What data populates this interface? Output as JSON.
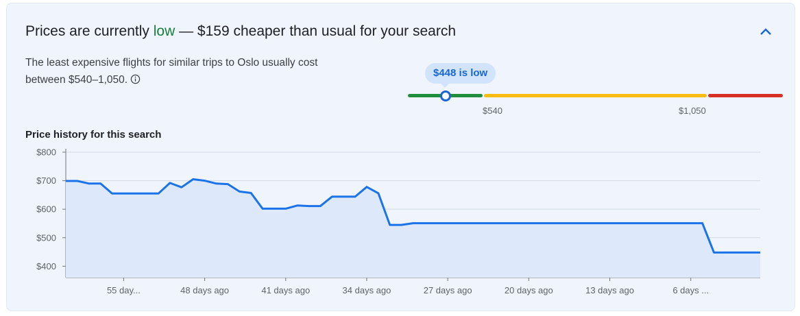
{
  "insight": {
    "headline_prefix": "Prices are currently ",
    "headline_status": "low",
    "headline_suffix": " — $159 cheaper than usual for your search",
    "description": "The least expensive flights for similar trips to Oslo usually cost between $540–1,050.",
    "info_icon": "info-icon",
    "collapse_icon": "chevron-up-icon"
  },
  "price_range": {
    "bubble_label": "$448 is low",
    "current_price": 448,
    "low_threshold_label": "$540",
    "high_threshold_label": "$1,050",
    "colors": {
      "low": "#1e8e3e",
      "typical": "#f9bb14",
      "high": "#d93025"
    }
  },
  "history": {
    "title": "Price history for this search"
  },
  "chart_data": {
    "type": "area",
    "ylim": [
      360,
      800
    ],
    "y_ticks": [
      800,
      700,
      600,
      500,
      400
    ],
    "y_tick_labels": [
      "$800",
      "$700",
      "$600",
      "$500",
      "$400"
    ],
    "x_ticks": [
      55,
      48,
      41,
      34,
      27,
      20,
      13,
      6
    ],
    "x_tick_labels": [
      "55 day...",
      "48 days ago",
      "41 days ago",
      "34 days ago",
      "27 days ago",
      "20 days ago",
      "13 days ago",
      "6 days ..."
    ],
    "grid": true,
    "color": "#1a73e8",
    "fill_color": "#dde8fb",
    "x_days_ago": [
      60,
      59,
      58,
      57,
      56,
      55,
      54,
      53,
      52,
      51,
      50,
      49,
      48,
      47,
      46,
      45,
      44,
      43,
      42,
      41,
      40,
      39,
      38,
      37,
      36,
      35,
      34,
      33,
      32,
      31,
      30,
      29,
      28,
      27,
      26,
      25,
      24,
      23,
      22,
      21,
      20,
      19,
      18,
      17,
      16,
      15,
      14,
      13,
      12,
      11,
      10,
      9,
      8,
      7,
      6,
      5,
      4,
      3,
      2,
      1,
      0
    ],
    "prices": [
      699,
      699,
      690,
      690,
      655,
      655,
      655,
      655,
      655,
      692,
      677,
      705,
      700,
      690,
      688,
      662,
      657,
      602,
      602,
      602,
      613,
      611,
      611,
      644,
      644,
      644,
      678,
      656,
      545,
      545,
      551,
      551,
      551,
      551,
      551,
      551,
      551,
      551,
      551,
      551,
      551,
      551,
      551,
      551,
      551,
      551,
      551,
      551,
      551,
      551,
      551,
      551,
      551,
      551,
      551,
      551,
      448,
      448,
      448,
      448,
      448
    ]
  }
}
